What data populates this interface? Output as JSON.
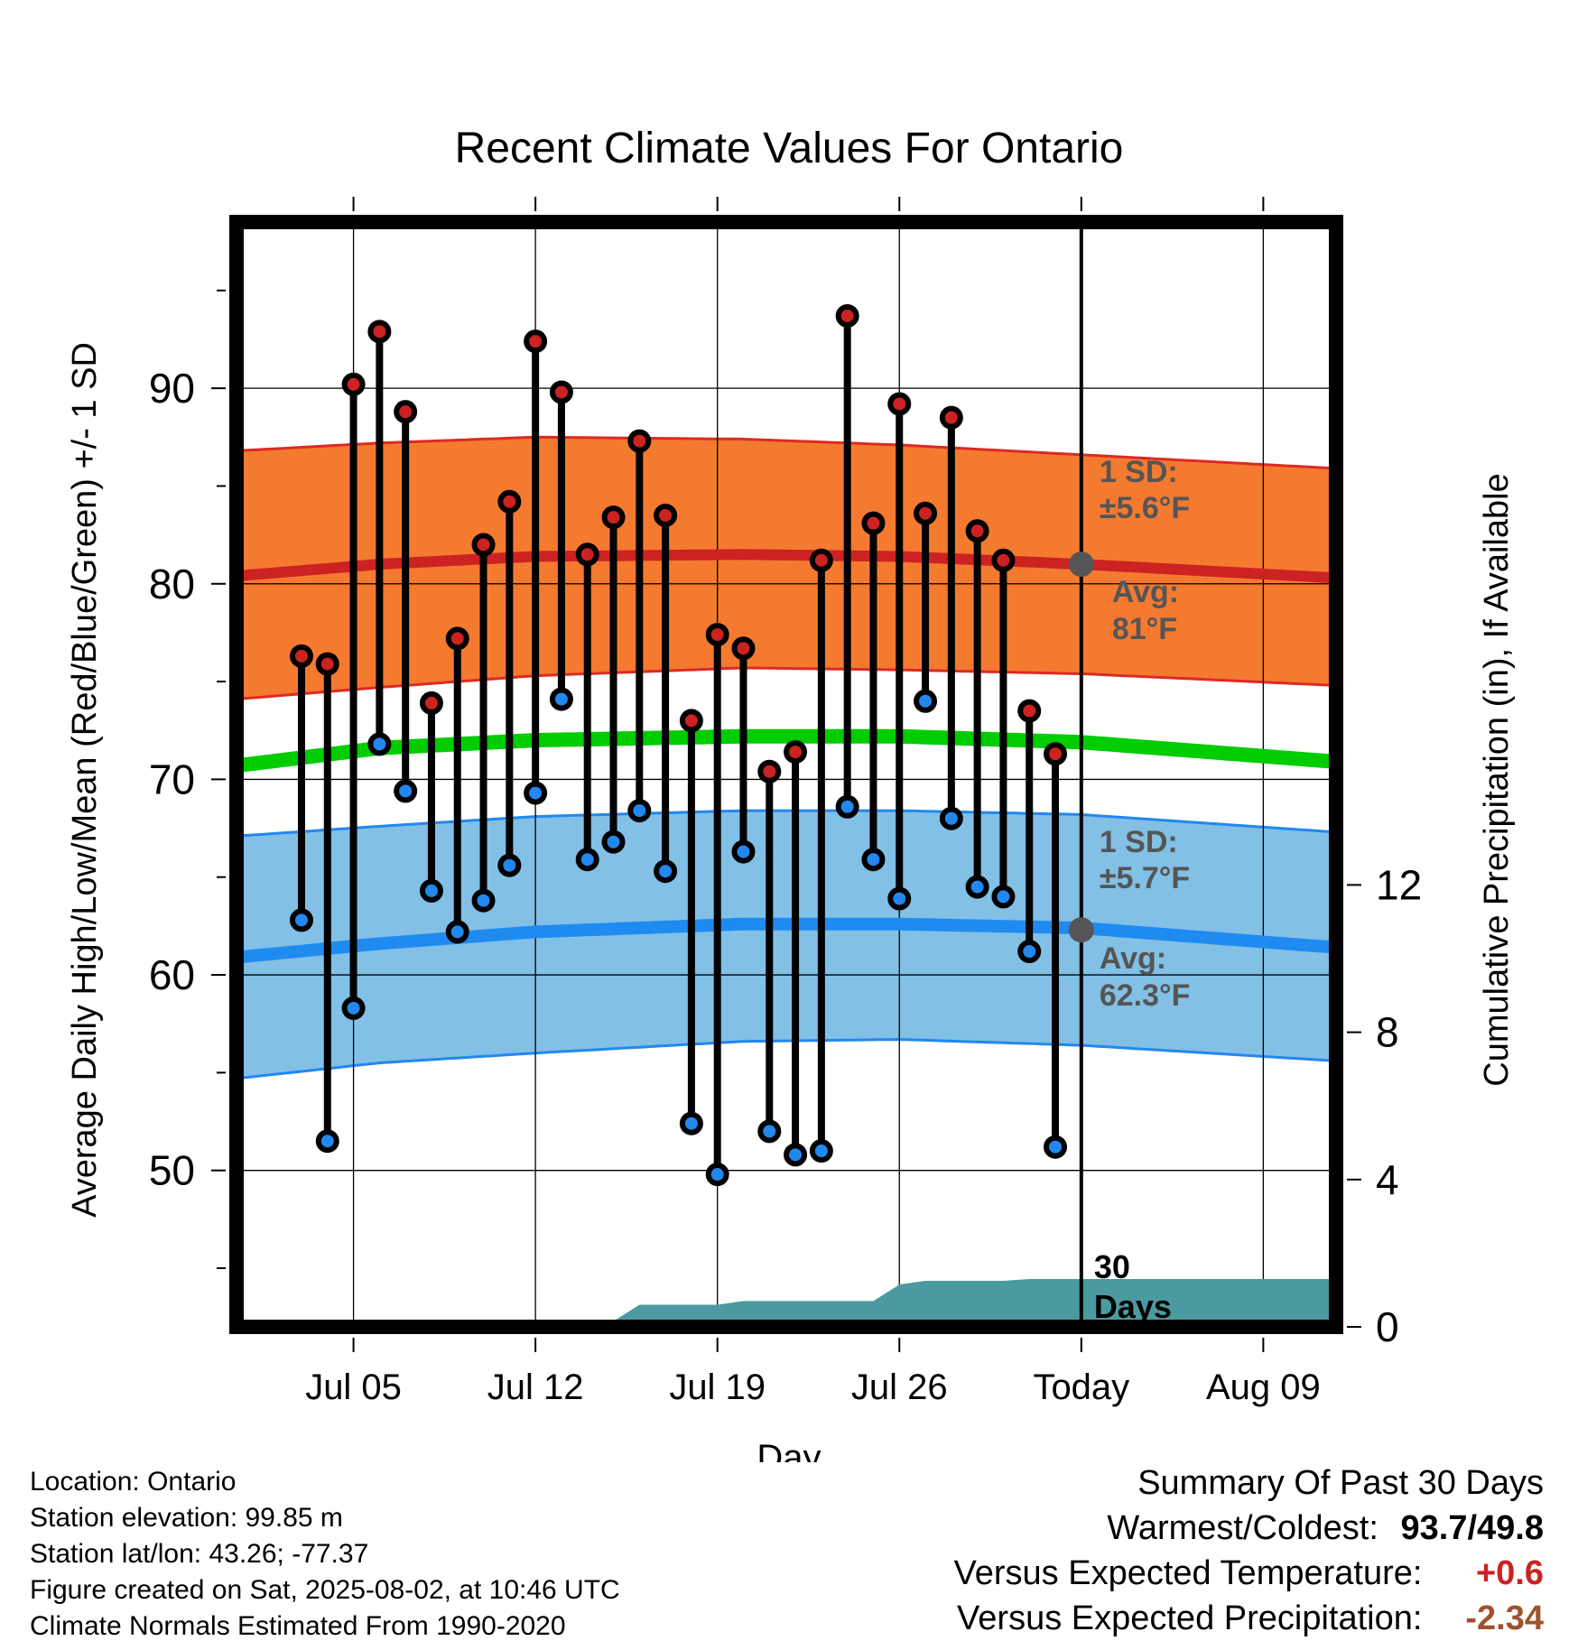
{
  "chart_data": {
    "type": "line",
    "title": "Recent Climate Values For Ontario",
    "xlabel": "Day",
    "ylabel": "Average Daily High/Low/Mean (Red/Blue/Green) +/- 1 SD",
    "y2label": "Cumulative Precipitation (in), If Available",
    "ylim": [
      42,
      98.5
    ],
    "y_ticks": [
      50,
      60,
      70,
      80,
      90
    ],
    "y2lim": [
      0,
      30
    ],
    "y2_ticks": [
      0,
      4,
      8,
      12
    ],
    "x_day_range": [
      0.5,
      42.8
    ],
    "x_ticks": [
      {
        "day": 5,
        "label": "Jul 05"
      },
      {
        "day": 12,
        "label": "Jul 12"
      },
      {
        "day": 19,
        "label": "Jul 19"
      },
      {
        "day": 26,
        "label": "Jul 26"
      },
      {
        "day": 33,
        "label": "Today"
      },
      {
        "day": 40,
        "label": "Aug 09"
      }
    ],
    "today_day": 33,
    "grid": true,
    "days": [
      3,
      4,
      5,
      6,
      7,
      8,
      9,
      10,
      11,
      12,
      13,
      14,
      15,
      16,
      17,
      18,
      19,
      20,
      21,
      22,
      23,
      24,
      25,
      26,
      27,
      28,
      29,
      30,
      31,
      32
    ],
    "series": [
      {
        "name": "High",
        "color": "#cc2222",
        "values": [
          76.3,
          75.9,
          90.2,
          92.9,
          88.8,
          73.9,
          77.2,
          82.0,
          84.2,
          92.4,
          89.8,
          81.5,
          83.4,
          87.3,
          83.5,
          73.0,
          77.4,
          76.7,
          70.4,
          71.4,
          81.2,
          93.7,
          83.1,
          89.2,
          83.6,
          88.5,
          82.7,
          81.2,
          73.5,
          71.3
        ]
      },
      {
        "name": "Low",
        "color": "#2288ee",
        "values": [
          62.8,
          51.5,
          58.3,
          71.8,
          69.4,
          64.3,
          62.2,
          63.8,
          65.6,
          69.3,
          74.1,
          65.9,
          66.8,
          68.4,
          65.3,
          52.4,
          49.8,
          66.3,
          52.0,
          50.8,
          51.0,
          68.6,
          65.9,
          63.9,
          74.0,
          68.0,
          64.5,
          64.0,
          61.2,
          51.2
        ]
      }
    ],
    "normals": {
      "day": [
        0.5,
        6,
        12,
        20,
        26,
        33,
        42.8
      ],
      "high_avg": [
        80.4,
        81.0,
        81.4,
        81.5,
        81.4,
        81.0,
        80.3
      ],
      "high_plus_sd": [
        86.8,
        87.2,
        87.5,
        87.4,
        87.1,
        86.6,
        85.9
      ],
      "high_minus_sd": [
        74.1,
        74.7,
        75.3,
        75.7,
        75.6,
        75.4,
        74.8
      ],
      "mean": [
        70.7,
        71.6,
        72.0,
        72.2,
        72.2,
        71.9,
        70.9
      ],
      "low_avg": [
        60.9,
        61.6,
        62.2,
        62.6,
        62.6,
        62.4,
        61.4
      ],
      "low_plus_sd": [
        67.1,
        67.6,
        68.1,
        68.4,
        68.4,
        68.2,
        67.3
      ],
      "low_minus_sd": [
        54.7,
        55.5,
        56.0,
        56.6,
        56.7,
        56.4,
        55.6
      ]
    },
    "precip_cumulative": {
      "day": [
        0.5,
        12.8,
        13.0,
        15.0,
        16.0,
        19.0,
        20.0,
        25.0,
        26.0,
        27.0,
        30.0,
        31.0,
        42.8
      ],
      "values": [
        0,
        0,
        0.15,
        0.15,
        0.6,
        0.6,
        0.7,
        0.7,
        1.15,
        1.25,
        1.25,
        1.3,
        1.3
      ]
    },
    "annotations": {
      "high_sd_line1": "1 SD:",
      "high_sd_line2": "±5.6°F",
      "high_avg_line1": "Avg:",
      "high_avg_line2": "81°F",
      "low_sd_line1": "1 SD:",
      "low_sd_line2": "±5.7°F",
      "low_avg_line1": "Avg:",
      "low_avg_line2": "62.3°F",
      "days_line1": "30",
      "days_line2": "Days"
    },
    "today_marks": {
      "high": 81.0,
      "low": 62.3
    },
    "colors": {
      "high_band": "#f47a30",
      "high_band_edge": "#dd2a22",
      "high_line": "#cc2222",
      "mean_line": "#00cc00",
      "low_band": "#82c0e6",
      "low_band_edge": "#2288ee",
      "low_line": "#1f8bf0",
      "precip": "#4a9aa0",
      "annotation": "#555555",
      "today_dot": "#555555"
    }
  },
  "info": {
    "location": "Location: Ontario",
    "elevation": "Station elevation: 99.85 m",
    "latlon": "Station lat/lon: 43.26; -77.37",
    "created": "Figure created on Sat, 2025-08-02, at 10:46 UTC",
    "normals": "Climate Normals Estimated From 1990-2020"
  },
  "summary": {
    "title": "Summary Of Past 30 Days",
    "warm_cold_label": "Warmest/Coldest:",
    "warm_value": "93.7",
    "cold_value": "49.8",
    "temp_label": "Versus Expected Temperature:",
    "temp_value": "+0.6",
    "temp_color": "#cc2222",
    "precip_label": "Versus Expected Precipitation:",
    "precip_value": "-2.34",
    "precip_color": "#a0522d"
  }
}
